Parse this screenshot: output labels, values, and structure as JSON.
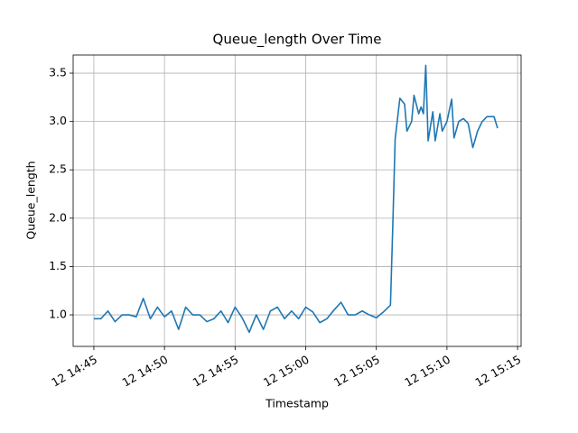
{
  "chart_data": {
    "type": "line",
    "title": "Queue_length Over Time",
    "x_label": "Timestamp",
    "y_label": "Queue_length",
    "color": "#1f77b4",
    "grid": true,
    "x": [
      "12 14:45:00",
      "12 14:45:30",
      "12 14:46:00",
      "12 14:46:30",
      "12 14:47:00",
      "12 14:47:30",
      "12 14:48:00",
      "12 14:48:30",
      "12 14:49:00",
      "12 14:49:30",
      "12 14:50:00",
      "12 14:50:30",
      "12 14:51:00",
      "12 14:51:30",
      "12 14:52:00",
      "12 14:52:30",
      "12 14:53:00",
      "12 14:53:30",
      "12 14:54:00",
      "12 14:54:30",
      "12 14:55:00",
      "12 14:55:30",
      "12 14:56:00",
      "12 14:56:30",
      "12 14:57:00",
      "12 14:57:30",
      "12 14:58:00",
      "12 14:58:30",
      "12 14:59:00",
      "12 14:59:30",
      "12 15:00:00",
      "12 15:00:30",
      "12 15:01:00",
      "12 15:01:30",
      "12 15:02:00",
      "12 15:02:30",
      "12 15:03:00",
      "12 15:03:30",
      "12 15:04:00",
      "12 15:04:30",
      "12 15:05:00",
      "12 15:05:30",
      "12 15:06:00",
      "12 15:06:10",
      "12 15:06:20",
      "12 15:06:40",
      "12 15:07:00",
      "12 15:07:10",
      "12 15:07:30",
      "12 15:07:40",
      "12 15:08:00",
      "12 15:08:10",
      "12 15:08:20",
      "12 15:08:30",
      "12 15:08:40",
      "12 15:09:00",
      "12 15:09:10",
      "12 15:09:30",
      "12 15:09:40",
      "12 15:10:00",
      "12 15:10:20",
      "12 15:10:30",
      "12 15:10:50",
      "12 15:11:10",
      "12 15:11:30",
      "12 15:11:50",
      "12 15:12:10",
      "12 15:12:30",
      "12 15:12:50",
      "12 15:13:20",
      "12 15:13:35"
    ],
    "values": [
      0.96,
      0.96,
      1.04,
      0.93,
      1.0,
      1.0,
      0.98,
      1.17,
      0.96,
      1.08,
      0.98,
      1.04,
      0.85,
      1.08,
      1.0,
      1.0,
      0.93,
      0.96,
      1.04,
      0.92,
      1.08,
      0.97,
      0.82,
      1.0,
      0.85,
      1.04,
      1.08,
      0.96,
      1.04,
      0.96,
      1.08,
      1.03,
      0.92,
      0.96,
      1.05,
      1.13,
      1.0,
      1.0,
      1.04,
      1.0,
      0.97,
      1.03,
      1.1,
      1.93,
      2.82,
      3.24,
      3.18,
      2.9,
      3.0,
      3.27,
      3.08,
      3.15,
      3.08,
      3.58,
      2.8,
      3.1,
      2.8,
      3.08,
      2.9,
      3.0,
      3.23,
      2.83,
      3.0,
      3.03,
      2.98,
      2.73,
      2.9,
      3.0,
      3.05,
      3.05,
      2.93
    ],
    "xlim": [
      "12 14:43:32",
      "12 15:15:15"
    ],
    "xticks": [
      "12 14:45",
      "12 14:50",
      "12 14:55",
      "12 15:00",
      "12 15:05",
      "12 15:10",
      "12 15:15"
    ],
    "ylim": [
      0.674,
      3.687
    ],
    "yticks": [
      {
        "value": 1,
        "label": "1.0"
      },
      1.5,
      {
        "value": 2,
        "label": "2.0"
      },
      2.5,
      {
        "value": 3,
        "label": "3.0"
      },
      3.5
    ]
  }
}
